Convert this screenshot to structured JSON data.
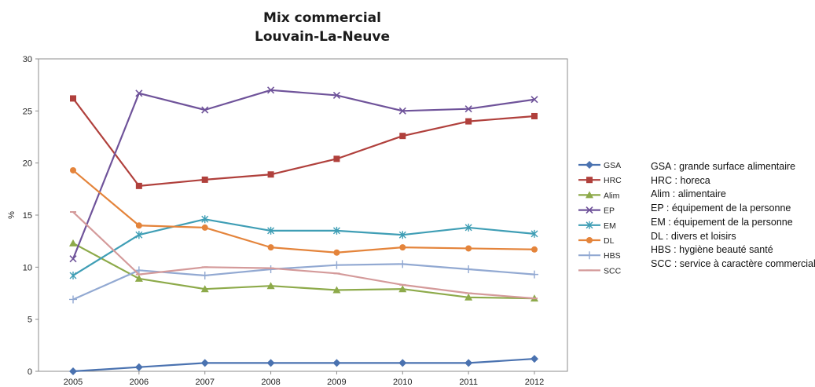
{
  "chart_data": {
    "type": "line",
    "title": "Mix commercial",
    "subtitle": "Louvain-La-Neuve",
    "xlabel": "",
    "ylabel": "%",
    "ylim": [
      0,
      30
    ],
    "yticks": [
      0,
      5,
      10,
      15,
      20,
      25,
      30
    ],
    "grid": false,
    "legend_position": "right",
    "categories": [
      "2005",
      "2006",
      "2007",
      "2008",
      "2009",
      "2010",
      "2011",
      "2012"
    ],
    "series": [
      {
        "name": "GSA",
        "color": "#4a72b0",
        "marker": "diamond",
        "values": [
          0,
          0.4,
          0.8,
          0.8,
          0.8,
          0.8,
          0.8,
          1.2
        ]
      },
      {
        "name": "HRC",
        "color": "#b0403c",
        "marker": "square",
        "values": [
          26.2,
          17.8,
          18.4,
          18.9,
          20.4,
          22.6,
          24.0,
          24.5
        ]
      },
      {
        "name": "Alim",
        "color": "#8daa4a",
        "marker": "triangle",
        "values": [
          12.3,
          8.9,
          7.9,
          8.2,
          7.8,
          7.9,
          7.1,
          7.0
        ]
      },
      {
        "name": "EP",
        "color": "#6f539a",
        "marker": "x",
        "values": [
          10.8,
          26.7,
          25.1,
          27.0,
          26.5,
          25.0,
          25.2,
          26.1
        ]
      },
      {
        "name": "EM",
        "color": "#3f9eb5",
        "marker": "star",
        "values": [
          9.2,
          13.1,
          14.6,
          13.5,
          13.5,
          13.1,
          13.8,
          13.2
        ]
      },
      {
        "name": "DL",
        "color": "#e4843b",
        "marker": "circle",
        "values": [
          19.3,
          14.0,
          13.8,
          11.9,
          11.4,
          11.9,
          11.8,
          11.7
        ]
      },
      {
        "name": "HBS",
        "color": "#92a9d2",
        "marker": "plus",
        "values": [
          6.9,
          9.7,
          9.2,
          9.8,
          10.2,
          10.3,
          9.8,
          9.3
        ]
      },
      {
        "name": "SCC",
        "color": "#d49a9a",
        "marker": "dash",
        "values": [
          15.3,
          9.3,
          10.0,
          9.9,
          9.4,
          8.3,
          7.5,
          7.0
        ]
      }
    ]
  },
  "notes": [
    "GSA : grande surface alimentaire",
    "HRC : horeca",
    "Alim : alimentaire",
    "EP : équipement de la personne",
    "EM : équipement de la personne",
    "DL : divers et loisirs",
    "HBS : hygiène beauté santé",
    "SCC : service à caractère commercial"
  ]
}
